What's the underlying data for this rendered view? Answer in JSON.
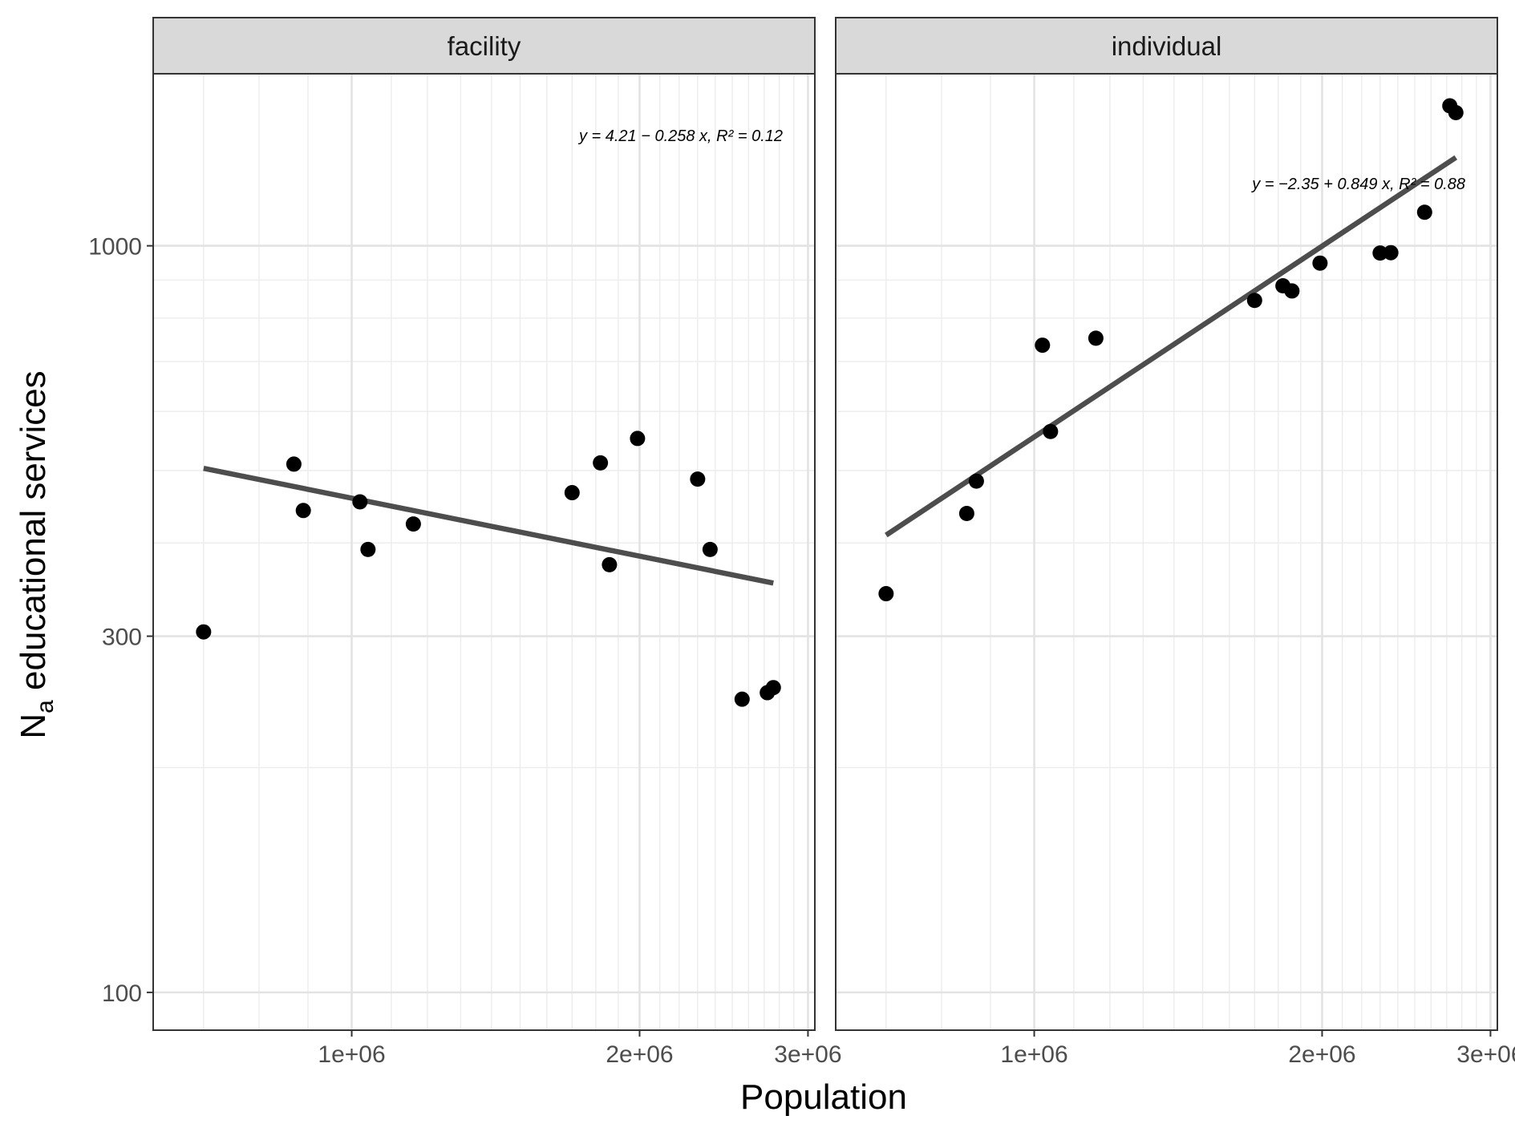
{
  "chart_data": {
    "type": "scatter",
    "xlabel": "Population",
    "ylabel_main": "N",
    "ylabel_sub": "a",
    "ylabel_rest": " educational services",
    "x_scale": "log",
    "y_scale": "log",
    "xlim": [
      620000,
      3050000
    ],
    "ylim": [
      89,
      1700
    ],
    "x_ticks": [
      {
        "value": 1000000,
        "label": "1e+06"
      },
      {
        "value": 2000000,
        "label": "2e+06"
      },
      {
        "value": 3000000,
        "label": "3e+06"
      }
    ],
    "y_ticks": [
      {
        "value": 100,
        "label": "100"
      },
      {
        "value": 300,
        "label": "300"
      },
      {
        "value": 1000,
        "label": "1000"
      }
    ],
    "grid": true,
    "panels": [
      {
        "name": "facility",
        "equation": "y = 4.21 − 0.258 x,  R² = 0.12",
        "points": [
          {
            "x": 700000,
            "y": 304
          },
          {
            "x": 870000,
            "y": 510
          },
          {
            "x": 890000,
            "y": 442
          },
          {
            "x": 1020000,
            "y": 454
          },
          {
            "x": 1040000,
            "y": 392
          },
          {
            "x": 1160000,
            "y": 424
          },
          {
            "x": 1700000,
            "y": 467
          },
          {
            "x": 1820000,
            "y": 512
          },
          {
            "x": 1860000,
            "y": 374
          },
          {
            "x": 1990000,
            "y": 552
          },
          {
            "x": 2300000,
            "y": 487
          },
          {
            "x": 2370000,
            "y": 392
          },
          {
            "x": 2560000,
            "y": 247
          },
          {
            "x": 2720000,
            "y": 252
          },
          {
            "x": 2760000,
            "y": 256
          }
        ],
        "fit": {
          "intercept": 4.21,
          "slope": -0.258
        }
      },
      {
        "name": "individual",
        "equation": "y = −2.35 + 0.849 x,  R² = 0.88",
        "points": [
          {
            "x": 700000,
            "y": 342
          },
          {
            "x": 850000,
            "y": 438
          },
          {
            "x": 870000,
            "y": 484
          },
          {
            "x": 1020000,
            "y": 736
          },
          {
            "x": 1040000,
            "y": 564
          },
          {
            "x": 1160000,
            "y": 752
          },
          {
            "x": 1700000,
            "y": 845
          },
          {
            "x": 1820000,
            "y": 884
          },
          {
            "x": 1860000,
            "y": 870
          },
          {
            "x": 1990000,
            "y": 948
          },
          {
            "x": 2300000,
            "y": 978
          },
          {
            "x": 2360000,
            "y": 979
          },
          {
            "x": 2560000,
            "y": 1109
          },
          {
            "x": 2720000,
            "y": 1540
          },
          {
            "x": 2760000,
            "y": 1508
          }
        ],
        "fit": {
          "intercept": -2.35,
          "slope": 0.849
        }
      }
    ]
  }
}
